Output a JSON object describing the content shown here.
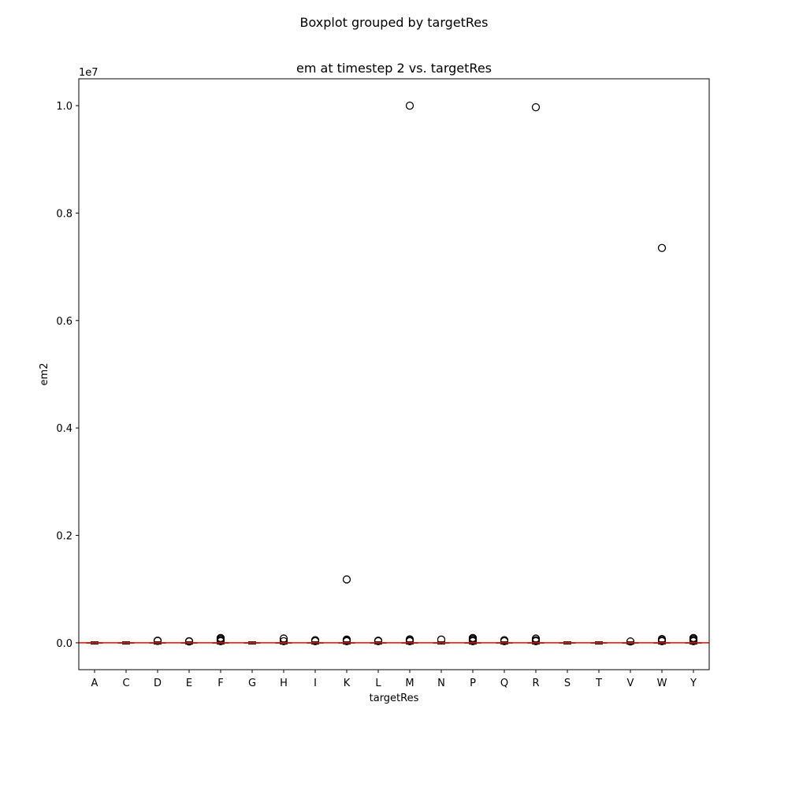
{
  "chart_data": {
    "type": "boxplot",
    "suptitle": "Boxplot grouped by targetRes",
    "title": "em at timestep 2 vs. targetRes",
    "xlabel": "targetRes",
    "ylabel": "em2",
    "y_offset_label": "1e7",
    "y_scale": 10000000,
    "ylim": [
      -500000,
      10500000
    ],
    "yticks": [
      0,
      2000000,
      4000000,
      6000000,
      8000000,
      10000000
    ],
    "ytick_labels": [
      "0.0",
      "0.2",
      "0.4",
      "0.6",
      "0.8",
      "1.0"
    ],
    "categories": [
      "A",
      "C",
      "D",
      "E",
      "F",
      "G",
      "H",
      "I",
      "K",
      "L",
      "M",
      "N",
      "P",
      "Q",
      "R",
      "S",
      "T",
      "V",
      "W",
      "Y"
    ],
    "reference_line": {
      "y": 0,
      "color": "#ff0000"
    },
    "median_color": "#2ca02c",
    "grid": false,
    "boxes": [
      {
        "category": "A",
        "q1": -8000,
        "median": -3000,
        "q3": 3000,
        "whisker_low": -25000,
        "whisker_high": 20000,
        "outliers": []
      },
      {
        "category": "C",
        "q1": -8000,
        "median": -3000,
        "q3": 3000,
        "whisker_low": -25000,
        "whisker_high": 20000,
        "outliers": []
      },
      {
        "category": "D",
        "q1": -8000,
        "median": -3000,
        "q3": 3000,
        "whisker_low": -25000,
        "whisker_high": 20000,
        "outliers": [
          35000,
          40000
        ]
      },
      {
        "category": "E",
        "q1": -8000,
        "median": -3000,
        "q3": 3000,
        "whisker_low": -25000,
        "whisker_high": 20000,
        "outliers": [
          25000,
          30000
        ]
      },
      {
        "category": "F",
        "q1": -8000,
        "median": -3000,
        "q3": 3000,
        "whisker_low": -25000,
        "whisker_high": 20000,
        "outliers": [
          30000,
          50000,
          70000,
          90000
        ]
      },
      {
        "category": "G",
        "q1": -8000,
        "median": -3000,
        "q3": 3000,
        "whisker_low": -25000,
        "whisker_high": 20000,
        "outliers": []
      },
      {
        "category": "H",
        "q1": -8000,
        "median": -3000,
        "q3": 3000,
        "whisker_low": -25000,
        "whisker_high": 20000,
        "outliers": [
          30000,
          80000
        ]
      },
      {
        "category": "I",
        "q1": -8000,
        "median": -3000,
        "q3": 3000,
        "whisker_low": -25000,
        "whisker_high": 20000,
        "outliers": [
          30000,
          50000
        ]
      },
      {
        "category": "K",
        "q1": -8000,
        "median": -3000,
        "q3": 3000,
        "whisker_low": -25000,
        "whisker_high": 20000,
        "outliers": [
          30000,
          45000,
          60000,
          1180000
        ]
      },
      {
        "category": "L",
        "q1": -8000,
        "median": -3000,
        "q3": 3000,
        "whisker_low": -25000,
        "whisker_high": 20000,
        "outliers": [
          30000,
          40000
        ]
      },
      {
        "category": "M",
        "q1": -8000,
        "median": -3000,
        "q3": 3000,
        "whisker_low": -25000,
        "whisker_high": 20000,
        "outliers": [
          30000,
          50000,
          65000,
          10000000
        ]
      },
      {
        "category": "N",
        "q1": -8000,
        "median": -3000,
        "q3": 3000,
        "whisker_low": -25000,
        "whisker_high": 20000,
        "outliers": [
          60000
        ]
      },
      {
        "category": "P",
        "q1": -8000,
        "median": -3000,
        "q3": 3000,
        "whisker_low": -25000,
        "whisker_high": 20000,
        "outliers": [
          30000,
          50000,
          70000,
          90000
        ]
      },
      {
        "category": "Q",
        "q1": -8000,
        "median": -3000,
        "q3": 3000,
        "whisker_low": -25000,
        "whisker_high": 20000,
        "outliers": [
          30000,
          50000
        ]
      },
      {
        "category": "R",
        "q1": -8000,
        "median": -3000,
        "q3": 3000,
        "whisker_low": -25000,
        "whisker_high": 20000,
        "outliers": [
          30000,
          50000,
          80000,
          9970000
        ]
      },
      {
        "category": "S",
        "q1": -8000,
        "median": -3000,
        "q3": 3000,
        "whisker_low": -25000,
        "whisker_high": 20000,
        "outliers": []
      },
      {
        "category": "T",
        "q1": -8000,
        "median": -3000,
        "q3": 3000,
        "whisker_low": -25000,
        "whisker_high": 20000,
        "outliers": []
      },
      {
        "category": "V",
        "q1": -8000,
        "median": -3000,
        "q3": 3000,
        "whisker_low": -25000,
        "whisker_high": 20000,
        "outliers": [
          25000
        ]
      },
      {
        "category": "W",
        "q1": -8000,
        "median": -3000,
        "q3": 3000,
        "whisker_low": -25000,
        "whisker_high": 20000,
        "outliers": [
          30000,
          50000,
          70000,
          7350000
        ]
      },
      {
        "category": "Y",
        "q1": -8000,
        "median": -3000,
        "q3": 3000,
        "whisker_low": -25000,
        "whisker_high": 20000,
        "outliers": [
          30000,
          50000,
          70000,
          90000
        ]
      }
    ]
  }
}
